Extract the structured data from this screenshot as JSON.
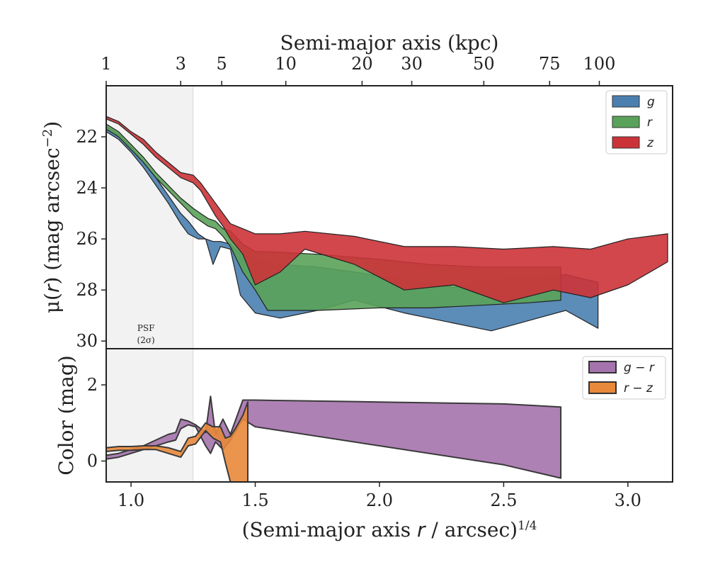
{
  "chart_data": {
    "type": "area",
    "top_axis": {
      "label": "Semi-major axis (kpc)",
      "ticks": [
        {
          "label": "1",
          "x": 0.9
        },
        {
          "label": "3",
          "x": 1.2
        },
        {
          "label": "5",
          "x": 1.365
        },
        {
          "label": "10",
          "x": 1.623
        },
        {
          "label": "20",
          "x": 1.93
        },
        {
          "label": "30",
          "x": 2.13
        },
        {
          "label": "50",
          "x": 2.42
        },
        {
          "label": "75",
          "x": 2.685
        },
        {
          "label": "100",
          "x": 2.885
        }
      ]
    },
    "bottom_axis": {
      "label_main": "(Semi-major axis ",
      "label_var": "r",
      "label_rest": " / arcsec)",
      "label_sup": "1/4",
      "ticks": [
        "1.0",
        "1.5",
        "2.0",
        "2.5",
        "3.0"
      ],
      "tick_values": [
        1.0,
        1.5,
        2.0,
        2.5,
        3.0
      ],
      "xlim": [
        0.9,
        3.18
      ]
    },
    "psf_region": {
      "x": [
        0.9,
        1.25
      ],
      "label_line1": "PSF",
      "label_line2": "(2σ)",
      "label_x": 1.06,
      "label_y": [
        29.6,
        30.0
      ]
    },
    "panels": [
      {
        "ylabel_main": "μ(",
        "ylabel_var": "r",
        "ylabel_rest": ") (mag arcsec",
        "ylabel_sup": "−2",
        "ylabel_close": ")",
        "ylim": [
          30.3,
          20.0
        ],
        "yticks": [
          22,
          24,
          26,
          28,
          30
        ],
        "ytick_labels": [
          "22",
          "24",
          "26",
          "28",
          "30"
        ],
        "legend": {
          "position": "top-right",
          "entries": [
            "g",
            "r",
            "z"
          ]
        },
        "series": [
          {
            "name": "g",
            "color": "#4a7fb0",
            "x": [
              0.9,
              0.95,
              1.0,
              1.05,
              1.1,
              1.15,
              1.2,
              1.23,
              1.27,
              1.3,
              1.33,
              1.36,
              1.4,
              1.44,
              1.5,
              1.6,
              1.75,
              1.9,
              2.1,
              2.3,
              2.45,
              2.6,
              2.75,
              2.88
            ],
            "lower": [
              21.6,
              21.9,
              22.4,
              23.0,
              23.6,
              24.3,
              25.0,
              25.3,
              25.8,
              26.0,
              26.1,
              26.1,
              26.2,
              26.6,
              26.8,
              27.0,
              27.1,
              27.3,
              27.6,
              27.9,
              27.6,
              27.5,
              27.4,
              27.7
            ],
            "upper": [
              21.8,
              22.1,
              22.6,
              23.2,
              23.9,
              24.6,
              25.4,
              25.8,
              26.0,
              26.0,
              27.0,
              26.3,
              26.4,
              28.2,
              28.9,
              29.1,
              28.8,
              28.4,
              28.9,
              29.3,
              29.6,
              29.2,
              28.8,
              29.5
            ]
          },
          {
            "name": "r",
            "color": "#5aa25a",
            "x": [
              0.9,
              0.95,
              1.0,
              1.05,
              1.1,
              1.15,
              1.2,
              1.25,
              1.28,
              1.31,
              1.34,
              1.37,
              1.4,
              1.45,
              1.5,
              1.55,
              1.75,
              2.0,
              2.2,
              2.4,
              2.6,
              2.73
            ],
            "lower": [
              21.5,
              21.8,
              22.3,
              22.8,
              23.4,
              23.9,
              24.4,
              24.8,
              25.0,
              25.2,
              25.3,
              25.6,
              25.7,
              26.2,
              26.5,
              26.5,
              26.6,
              26.8,
              27.0,
              27.1,
              27.1,
              27.1
            ],
            "upper": [
              21.7,
              22.0,
              22.5,
              23.0,
              23.6,
              24.1,
              24.6,
              25.1,
              25.3,
              25.5,
              25.6,
              25.9,
              26.3,
              27.3,
              28.0,
              28.8,
              28.8,
              28.7,
              28.7,
              28.6,
              28.5,
              28.4
            ]
          },
          {
            "name": "z",
            "color": "#cc3338",
            "x": [
              0.9,
              0.95,
              1.0,
              1.05,
              1.1,
              1.15,
              1.2,
              1.25,
              1.28,
              1.31,
              1.34,
              1.37,
              1.4,
              1.45,
              1.5,
              1.6,
              1.7,
              1.9,
              2.1,
              2.3,
              2.5,
              2.7,
              2.85,
              3.0,
              3.16
            ],
            "lower": [
              21.2,
              21.4,
              21.8,
              22.1,
              22.6,
              23.0,
              23.4,
              23.5,
              23.8,
              24.2,
              24.6,
              25.0,
              25.4,
              25.6,
              25.8,
              25.8,
              25.7,
              25.9,
              26.3,
              26.3,
              26.4,
              26.3,
              26.4,
              26.0,
              25.8
            ],
            "upper": [
              21.3,
              21.5,
              21.9,
              22.3,
              22.8,
              23.2,
              23.6,
              23.8,
              24.1,
              24.6,
              25.1,
              25.5,
              26.0,
              26.6,
              27.8,
              27.3,
              26.4,
              27.0,
              28.0,
              27.8,
              28.5,
              28.0,
              28.3,
              27.8,
              26.9
            ]
          }
        ]
      },
      {
        "ylabel": "Color (mag)",
        "ylim": [
          -0.55,
          2.95
        ],
        "yticks": [
          0,
          2
        ],
        "ytick_labels": [
          "0",
          "2"
        ],
        "legend": {
          "position": "top-right",
          "entries": [
            "g − r",
            "r − z"
          ]
        },
        "series": [
          {
            "name": "g − r",
            "color": "#a573ad",
            "x": [
              0.9,
              0.95,
              1.0,
              1.05,
              1.1,
              1.15,
              1.18,
              1.2,
              1.23,
              1.26,
              1.3,
              1.32,
              1.34,
              1.37,
              1.4,
              1.45,
              1.5,
              2.0,
              2.5,
              2.73
            ],
            "lower": [
              0.05,
              0.1,
              0.2,
              0.3,
              0.4,
              0.5,
              0.55,
              0.85,
              0.95,
              0.9,
              0.4,
              0.2,
              0.5,
              0.3,
              0.55,
              1.1,
              0.9,
              0.4,
              -0.1,
              -0.45
            ],
            "upper": [
              0.15,
              0.2,
              0.3,
              0.4,
              0.55,
              0.7,
              0.75,
              1.1,
              1.05,
              0.95,
              0.75,
              1.7,
              0.7,
              1.1,
              0.7,
              1.6,
              1.6,
              1.55,
              1.5,
              1.42
            ]
          },
          {
            "name": "r − z",
            "color": "#e8883a",
            "x": [
              0.9,
              0.95,
              1.0,
              1.05,
              1.1,
              1.15,
              1.2,
              1.23,
              1.26,
              1.3,
              1.33,
              1.36,
              1.38,
              1.4,
              1.42,
              1.45,
              1.47
            ],
            "lower": [
              0.25,
              0.28,
              0.28,
              0.3,
              0.3,
              0.2,
              0.1,
              0.4,
              0.45,
              0.8,
              0.6,
              0.5,
              -0.05,
              -0.55,
              -0.55,
              -0.55,
              -0.55
            ],
            "upper": [
              0.35,
              0.38,
              0.38,
              0.4,
              0.4,
              0.35,
              0.25,
              0.6,
              0.65,
              1.0,
              0.9,
              0.9,
              0.6,
              0.65,
              0.85,
              1.2,
              1.55
            ]
          }
        ]
      }
    ]
  }
}
